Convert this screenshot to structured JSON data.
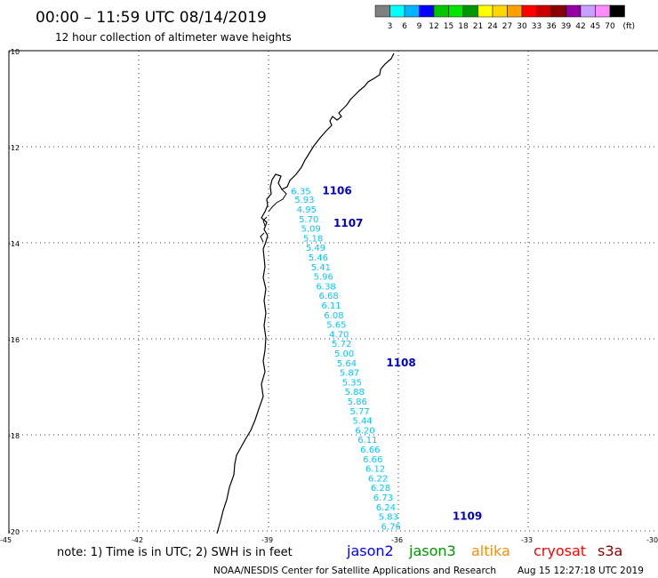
{
  "title": "00:00 – 11:59 UTC 08/14/2019",
  "subtitle": "12 hour collection of altimeter wave heights",
  "legend": {
    "colors": [
      "#808080",
      "#00ffff",
      "#00b4ff",
      "#0000ff",
      "#00c800",
      "#00e600",
      "#009600",
      "#ffff00",
      "#ffd700",
      "#ffa000",
      "#ff0000",
      "#c80000",
      "#8b0000",
      "#9400a0",
      "#c8a0ff",
      "#ff8cff",
      "#000000"
    ],
    "labels": [
      "3",
      "6",
      "9",
      "12",
      "15",
      "18",
      "21",
      "24",
      "27",
      "30",
      "33",
      "36",
      "39",
      "42",
      "45",
      "70",
      "(ft)"
    ]
  },
  "axes": {
    "lat_ticks": [
      "-10",
      "-12",
      "-14",
      "-16",
      "-18",
      "-20"
    ],
    "lon_ticks": [
      "-45",
      "-42",
      "-39",
      "-36",
      "-33",
      "-30"
    ]
  },
  "track": {
    "color": "#00c8ff",
    "values": [
      {
        "v": "6.35",
        "lon": -38.48,
        "lat": -12.99
      },
      {
        "v": "5.93",
        "lon": -38.4,
        "lat": -13.17
      },
      {
        "v": "4.95",
        "lon": -38.35,
        "lat": -13.37
      },
      {
        "v": "5.70",
        "lon": -38.3,
        "lat": -13.57
      },
      {
        "v": "5.09",
        "lon": -38.25,
        "lat": -13.77
      },
      {
        "v": "5.18",
        "lon": -38.2,
        "lat": -13.97
      },
      {
        "v": "5.49",
        "lon": -38.14,
        "lat": -14.17
      },
      {
        "v": "5.46",
        "lon": -38.08,
        "lat": -14.37
      },
      {
        "v": "5.41",
        "lon": -38.02,
        "lat": -14.57
      },
      {
        "v": "5.96",
        "lon": -37.96,
        "lat": -14.77
      },
      {
        "v": "6.38",
        "lon": -37.9,
        "lat": -14.97
      },
      {
        "v": "6.68",
        "lon": -37.84,
        "lat": -15.17
      },
      {
        "v": "6.11",
        "lon": -37.78,
        "lat": -15.37
      },
      {
        "v": "6.08",
        "lon": -37.72,
        "lat": -15.57
      },
      {
        "v": "5.65",
        "lon": -37.66,
        "lat": -15.77
      },
      {
        "v": "4.70",
        "lon": -37.6,
        "lat": -15.97
      },
      {
        "v": "5.72",
        "lon": -37.54,
        "lat": -16.17
      },
      {
        "v": "5.00",
        "lon": -37.48,
        "lat": -16.37
      },
      {
        "v": "5.64",
        "lon": -37.42,
        "lat": -16.57
      },
      {
        "v": "5.87",
        "lon": -37.36,
        "lat": -16.77
      },
      {
        "v": "5.35",
        "lon": -37.3,
        "lat": -16.97
      },
      {
        "v": "5.88",
        "lon": -37.24,
        "lat": -17.17
      },
      {
        "v": "5.86",
        "lon": -37.18,
        "lat": -17.37
      },
      {
        "v": "5.77",
        "lon": -37.12,
        "lat": -17.57
      },
      {
        "v": "5.44",
        "lon": -37.06,
        "lat": -17.77
      },
      {
        "v": "6.20",
        "lon": -37.0,
        "lat": -17.97
      },
      {
        "v": "6.11",
        "lon": -36.94,
        "lat": -18.17
      },
      {
        "v": "6.66",
        "lon": -36.88,
        "lat": -18.37
      },
      {
        "v": "6.66",
        "lon": -36.82,
        "lat": -18.57
      },
      {
        "v": "6.12",
        "lon": -36.76,
        "lat": -18.77
      },
      {
        "v": "6.22",
        "lon": -36.7,
        "lat": -18.97
      },
      {
        "v": "6.28",
        "lon": -36.64,
        "lat": -19.17
      },
      {
        "v": "6.73",
        "lon": -36.58,
        "lat": -19.37
      },
      {
        "v": "6.24",
        "lon": -36.52,
        "lat": -19.57
      },
      {
        "v": "5.83",
        "lon": -36.46,
        "lat": -19.77
      },
      {
        "v": "6.76",
        "lon": -36.4,
        "lat": -19.97
      }
    ]
  },
  "time_labels": [
    {
      "text": "1106",
      "lon": -37.76,
      "lat": -12.99
    },
    {
      "text": "1107",
      "lon": -37.5,
      "lat": -13.67
    },
    {
      "text": "1108",
      "lon": -36.28,
      "lat": -16.57
    },
    {
      "text": "1109",
      "lon": -34.75,
      "lat": -19.77
    }
  ],
  "time_label_color": "#0000c8",
  "note": "note:  1) Time is in UTC;  2) SWH is in feet",
  "satellites": [
    {
      "name": "jason2",
      "color": "#0000ff"
    },
    {
      "name": "jason3",
      "color": "#009600"
    },
    {
      "name": "altika",
      "color": "#ff8c00"
    },
    {
      "name": "cryosat",
      "color": "#ff0000"
    },
    {
      "name": "s3a",
      "color": "#8b0000"
    }
  ],
  "footer": "NOAA/NESDIS Center for Satellite Applications and Research",
  "timestamp": "Aug 15 12:27:18 UTC 2019"
}
